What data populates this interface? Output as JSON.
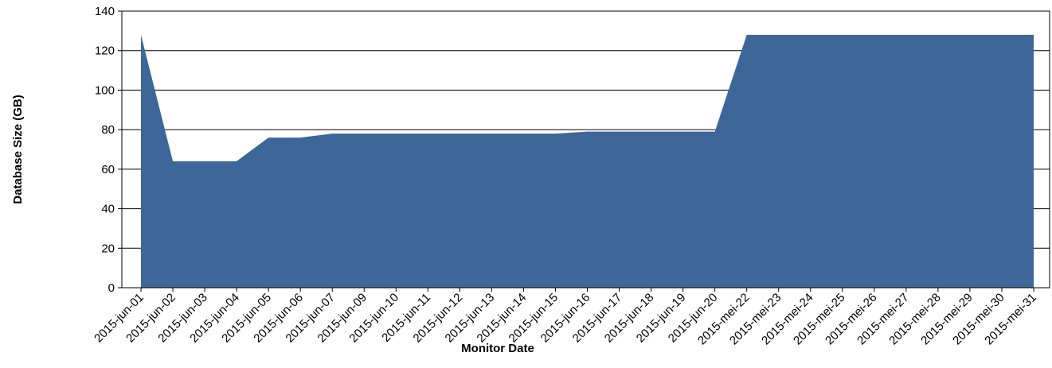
{
  "chart_data": {
    "type": "area",
    "title": "",
    "xlabel": "Monitor Date",
    "ylabel": "Database Size (GB)",
    "ylim": [
      0,
      140
    ],
    "yticks": [
      0,
      20,
      40,
      60,
      80,
      100,
      120,
      140
    ],
    "grid": "horizontal",
    "legend": "none",
    "fill_color": "#3D6699",
    "categories": [
      "2015-jun-01",
      "2015-jun-02",
      "2015-jun-03",
      "2015-jun-04",
      "2015-jun-05",
      "2015-jun-06",
      "2015-jun-07",
      "2015-jun-09",
      "2015-jun-10",
      "2015-jun-11",
      "2015-jun-12",
      "2015-jun-13",
      "2015-jun-14",
      "2015-jun-15",
      "2015-jun-16",
      "2015-jun-17",
      "2015-jun-18",
      "2015-jun-19",
      "2015-jun-20",
      "2015-mei-22",
      "2015-mei-23",
      "2015-mei-24",
      "2015-mei-25",
      "2015-mei-26",
      "2015-mei-27",
      "2015-mei-28",
      "2015-mei-29",
      "2015-mei-30",
      "2015-mei-31"
    ],
    "series": [
      {
        "values": [
          128,
          64,
          64,
          64,
          76,
          76,
          78,
          78,
          78,
          78,
          78,
          78,
          78,
          78,
          79,
          79,
          79,
          79,
          79,
          128,
          128,
          128,
          128,
          128,
          128,
          128,
          128,
          128,
          128
        ]
      }
    ]
  }
}
